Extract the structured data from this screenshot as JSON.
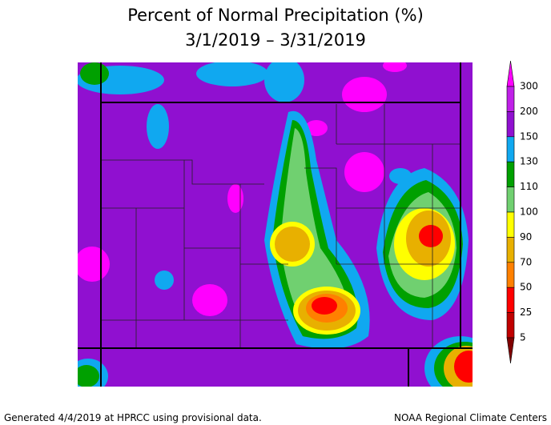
{
  "title": "Percent of Normal Precipitation (%)",
  "subtitle": "3/1/2019 – 3/31/2019",
  "legend": {
    "labels": [
      300,
      200,
      150,
      130,
      110,
      100,
      90,
      70,
      50,
      25,
      5
    ],
    "colors": [
      "#ff00ff",
      "#c020e8",
      "#9010d0",
      "#10a8f0",
      "#00a000",
      "#70d070",
      "#ffff00",
      "#e8b000",
      "#ff8000",
      "#ff0000",
      "#c00000",
      "#800000"
    ]
  },
  "footer": {
    "left": "Generated 4/4/2019 at HPRCC using provisional data.",
    "right": "NOAA Regional Climate Centers"
  }
}
